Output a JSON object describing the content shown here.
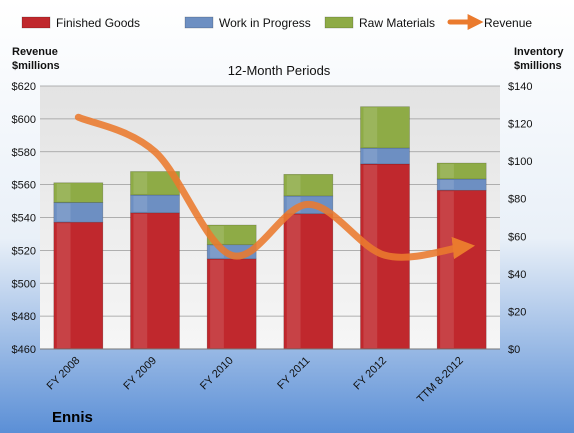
{
  "chart_data": {
    "type": "bar",
    "title": "12-Month Periods",
    "company": "Ennis",
    "left_axis": {
      "title_line1": "Revenue",
      "title_line2": "$millions",
      "min": 460,
      "max": 620,
      "step": 20,
      "prefix": "$"
    },
    "right_axis": {
      "title_line1": "Inventory",
      "title_line2": "$millions",
      "min": 0,
      "max": 140,
      "step": 20,
      "prefix": "$"
    },
    "categories": [
      "FY 2008",
      "FY 2009",
      "FY 2010",
      "FY 2011",
      "FY 2012",
      "TTM 8-2012"
    ],
    "series": [
      {
        "name": "Finished Goods",
        "axis": "right",
        "stack": true,
        "color": "#c0282d",
        "values": [
          67.5,
          72.5,
          48,
          72,
          98.5,
          84.5
        ]
      },
      {
        "name": "Work in Progress",
        "axis": "right",
        "stack": true,
        "color": "#6d8fc2",
        "values": [
          10.5,
          9.5,
          7.5,
          9.5,
          8.5,
          6
        ]
      },
      {
        "name": "Raw Materials",
        "axis": "right",
        "stack": true,
        "color": "#8eab46",
        "values": [
          10.5,
          12.5,
          10.5,
          11.5,
          22,
          8.5
        ]
      },
      {
        "name": "Revenue",
        "axis": "left",
        "type": "line",
        "color": "#ea7a2d",
        "values": [
          601,
          580,
          517,
          548,
          517,
          522
        ]
      }
    ],
    "grid": true,
    "legend": "top"
  }
}
